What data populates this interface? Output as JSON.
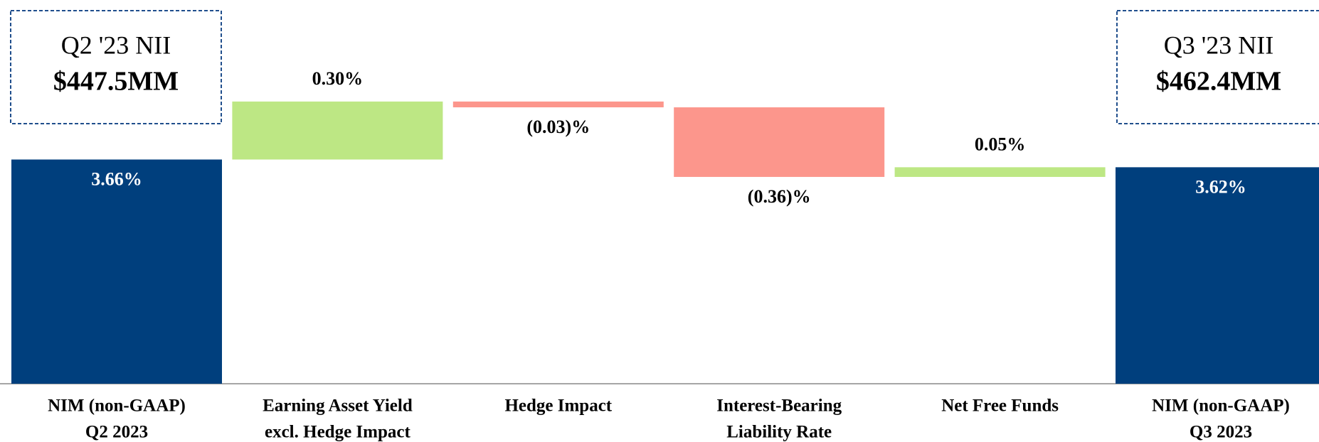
{
  "chart_data": {
    "type": "waterfall",
    "categories": [
      [
        "NIM (non-GAAP)",
        "Q2 2023"
      ],
      [
        "Earning Asset Yield",
        "excl. Hedge Impact"
      ],
      [
        "Hedge Impact"
      ],
      [
        "Interest-Bearing",
        "Liability Rate"
      ],
      [
        "Net Free Funds"
      ],
      [
        "NIM (non-GAAP)",
        "Q3 2023"
      ]
    ],
    "values": [
      3.66,
      0.3,
      -0.03,
      -0.36,
      0.05,
      3.62
    ],
    "value_labels": [
      "3.66%",
      "0.30%",
      "(0.03)%",
      "(0.36)%",
      "0.05%",
      "3.62%"
    ],
    "measures": [
      "total",
      "relative",
      "relative",
      "relative",
      "relative",
      "total"
    ],
    "colors": {
      "total": "#003f7d",
      "increase": "#bde784",
      "decrease": "#fc968c"
    },
    "ylim": [
      2.5,
      4.5
    ],
    "annotations": [
      {
        "lines": [
          "Q2 '23 NII",
          "$447.5MM"
        ]
      },
      {
        "lines": [
          "Q3 '23 NII",
          "$462.4MM"
        ]
      }
    ]
  }
}
